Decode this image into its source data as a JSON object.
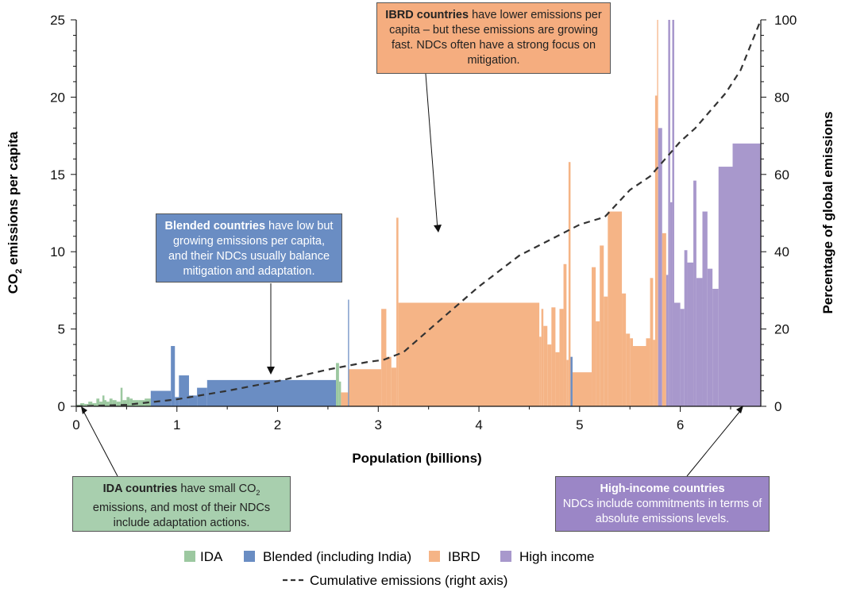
{
  "chart_data": {
    "type": "bar",
    "xlabel": "Population (billions)",
    "ylabel_main": "CO",
    "ylabel_sub": "2",
    "ylabel_rest": " emissions per capita",
    "y2label": "Percentage of global emissions",
    "xlim": [
      0,
      6.8
    ],
    "ylim": [
      0,
      25
    ],
    "y2lim": [
      0,
      100
    ],
    "xticks": [
      0,
      1,
      2,
      3,
      4,
      5,
      6
    ],
    "yticks": [
      0,
      5,
      10,
      15,
      20,
      25
    ],
    "y2ticks": [
      0,
      20,
      40,
      60,
      80,
      100
    ],
    "colors": {
      "IDA": "#9cc8a0",
      "Blended": "#6a8dc3",
      "IBRD": "#f5b486",
      "High income": "#a898cc",
      "line": "#333333"
    },
    "legend": {
      "ida": "IDA",
      "blended": "Blended (including India)",
      "ibrd": "IBRD",
      "high": "High income",
      "line": "Cumulative emissions (right axis)"
    },
    "bars": [
      {
        "g": "IDA",
        "x0": 0.0,
        "x1": 0.04,
        "y": 0.1
      },
      {
        "g": "IDA",
        "x0": 0.04,
        "x1": 0.08,
        "y": 0.2
      },
      {
        "g": "IDA",
        "x0": 0.08,
        "x1": 0.12,
        "y": 0.15
      },
      {
        "g": "IDA",
        "x0": 0.12,
        "x1": 0.16,
        "y": 0.3
      },
      {
        "g": "IDA",
        "x0": 0.16,
        "x1": 0.2,
        "y": 0.2
      },
      {
        "g": "IDA",
        "x0": 0.2,
        "x1": 0.23,
        "y": 0.5
      },
      {
        "g": "IDA",
        "x0": 0.23,
        "x1": 0.26,
        "y": 0.3
      },
      {
        "g": "IDA",
        "x0": 0.26,
        "x1": 0.28,
        "y": 0.7
      },
      {
        "g": "IDA",
        "x0": 0.28,
        "x1": 0.3,
        "y": 0.4
      },
      {
        "g": "IDA",
        "x0": 0.3,
        "x1": 0.33,
        "y": 0.3
      },
      {
        "g": "IDA",
        "x0": 0.33,
        "x1": 0.36,
        "y": 0.5
      },
      {
        "g": "IDA",
        "x0": 0.36,
        "x1": 0.4,
        "y": 0.4
      },
      {
        "g": "IDA",
        "x0": 0.4,
        "x1": 0.44,
        "y": 0.3
      },
      {
        "g": "IDA",
        "x0": 0.44,
        "x1": 0.46,
        "y": 1.2
      },
      {
        "g": "IDA",
        "x0": 0.46,
        "x1": 0.5,
        "y": 0.4
      },
      {
        "g": "IDA",
        "x0": 0.5,
        "x1": 0.53,
        "y": 0.6
      },
      {
        "g": "IDA",
        "x0": 0.53,
        "x1": 0.56,
        "y": 0.5
      },
      {
        "g": "IDA",
        "x0": 0.56,
        "x1": 0.62,
        "y": 0.4
      },
      {
        "g": "IDA",
        "x0": 0.62,
        "x1": 0.68,
        "y": 0.4
      },
      {
        "g": "IDA",
        "x0": 0.68,
        "x1": 0.74,
        "y": 0.5
      },
      {
        "g": "Blended",
        "x0": 0.74,
        "x1": 0.94,
        "y": 1.0
      },
      {
        "g": "Blended",
        "x0": 0.94,
        "x1": 0.98,
        "y": 3.9
      },
      {
        "g": "Blended",
        "x0": 0.98,
        "x1": 1.02,
        "y": 0.6
      },
      {
        "g": "Blended",
        "x0": 1.02,
        "x1": 1.12,
        "y": 2.0
      },
      {
        "g": "Blended",
        "x0": 1.12,
        "x1": 1.2,
        "y": 0.7
      },
      {
        "g": "Blended",
        "x0": 1.2,
        "x1": 1.3,
        "y": 1.2
      },
      {
        "g": "Blended",
        "x0": 1.3,
        "x1": 2.58,
        "y": 1.7
      },
      {
        "g": "IDA",
        "x0": 2.58,
        "x1": 2.61,
        "y": 2.8
      },
      {
        "g": "IDA",
        "x0": 2.61,
        "x1": 2.63,
        "y": 1.6
      },
      {
        "g": "IBRD",
        "x0": 2.63,
        "x1": 2.7,
        "y": 0.9
      },
      {
        "g": "Blended",
        "x0": 2.7,
        "x1": 2.71,
        "y": 6.9
      },
      {
        "g": "IBRD",
        "x0": 2.71,
        "x1": 3.03,
        "y": 2.4
      },
      {
        "g": "IBRD",
        "x0": 3.03,
        "x1": 3.08,
        "y": 6.3
      },
      {
        "g": "IBRD",
        "x0": 3.08,
        "x1": 3.13,
        "y": 3.2
      },
      {
        "g": "IBRD",
        "x0": 3.13,
        "x1": 3.18,
        "y": 2.5
      },
      {
        "g": "IBRD",
        "x0": 3.18,
        "x1": 3.2,
        "y": 12.2
      },
      {
        "g": "IBRD",
        "x0": 3.2,
        "x1": 4.6,
        "y": 6.7
      },
      {
        "g": "IBRD",
        "x0": 4.6,
        "x1": 4.62,
        "y": 4.5
      },
      {
        "g": "IBRD",
        "x0": 4.62,
        "x1": 4.64,
        "y": 6.3
      },
      {
        "g": "IBRD",
        "x0": 4.64,
        "x1": 4.68,
        "y": 5.2
      },
      {
        "g": "IBRD",
        "x0": 4.68,
        "x1": 4.72,
        "y": 4.0
      },
      {
        "g": "IBRD",
        "x0": 4.72,
        "x1": 4.76,
        "y": 6.4
      },
      {
        "g": "IBRD",
        "x0": 4.76,
        "x1": 4.8,
        "y": 3.5
      },
      {
        "g": "IBRD",
        "x0": 4.8,
        "x1": 4.84,
        "y": 6.3
      },
      {
        "g": "IBRD",
        "x0": 4.84,
        "x1": 4.87,
        "y": 9.2
      },
      {
        "g": "IBRD",
        "x0": 4.87,
        "x1": 4.89,
        "y": 3.0
      },
      {
        "g": "IBRD",
        "x0": 4.89,
        "x1": 4.91,
        "y": 15.8
      },
      {
        "g": "Blended",
        "x0": 4.91,
        "x1": 4.93,
        "y": 3.2
      },
      {
        "g": "IBRD",
        "x0": 4.93,
        "x1": 5.12,
        "y": 2.2
      },
      {
        "g": "IBRD",
        "x0": 5.12,
        "x1": 5.16,
        "y": 9.0
      },
      {
        "g": "IBRD",
        "x0": 5.16,
        "x1": 5.2,
        "y": 5.5
      },
      {
        "g": "IBRD",
        "x0": 5.2,
        "x1": 5.24,
        "y": 10.4
      },
      {
        "g": "IBRD",
        "x0": 5.24,
        "x1": 5.28,
        "y": 7.1
      },
      {
        "g": "IBRD",
        "x0": 5.28,
        "x1": 5.42,
        "y": 12.6
      },
      {
        "g": "IBRD",
        "x0": 5.42,
        "x1": 5.46,
        "y": 7.3
      },
      {
        "g": "IBRD",
        "x0": 5.46,
        "x1": 5.5,
        "y": 4.7
      },
      {
        "g": "IBRD",
        "x0": 5.5,
        "x1": 5.53,
        "y": 4.4
      },
      {
        "g": "IBRD",
        "x0": 5.53,
        "x1": 5.66,
        "y": 3.9
      },
      {
        "g": "IBRD",
        "x0": 5.66,
        "x1": 5.7,
        "y": 4.4
      },
      {
        "g": "IBRD",
        "x0": 5.7,
        "x1": 5.73,
        "y": 8.3
      },
      {
        "g": "IBRD",
        "x0": 5.73,
        "x1": 5.75,
        "y": 4.3
      },
      {
        "g": "IBRD",
        "x0": 5.75,
        "x1": 5.77,
        "y": 20.1
      },
      {
        "g": "IBRD",
        "x0": 5.77,
        "x1": 5.78,
        "y": 25.0
      },
      {
        "g": "High income",
        "x0": 5.78,
        "x1": 5.82,
        "y": 18.0
      },
      {
        "g": "IBRD",
        "x0": 5.82,
        "x1": 5.86,
        "y": 11.2
      },
      {
        "g": "High income",
        "x0": 5.86,
        "x1": 5.88,
        "y": 8.5
      },
      {
        "g": "High income",
        "x0": 5.88,
        "x1": 5.9,
        "y": 25.0
      },
      {
        "g": "High income",
        "x0": 5.9,
        "x1": 5.92,
        "y": 13.2
      },
      {
        "g": "High income",
        "x0": 5.92,
        "x1": 5.94,
        "y": 25.0
      },
      {
        "g": "High income",
        "x0": 5.94,
        "x1": 6.0,
        "y": 6.7
      },
      {
        "g": "High income",
        "x0": 6.0,
        "x1": 6.04,
        "y": 6.3
      },
      {
        "g": "High income",
        "x0": 6.04,
        "x1": 6.07,
        "y": 10.1
      },
      {
        "g": "High income",
        "x0": 6.07,
        "x1": 6.13,
        "y": 9.3
      },
      {
        "g": "High income",
        "x0": 6.13,
        "x1": 6.16,
        "y": 14.6
      },
      {
        "g": "High income",
        "x0": 6.16,
        "x1": 6.22,
        "y": 8.3
      },
      {
        "g": "High income",
        "x0": 6.22,
        "x1": 6.27,
        "y": 12.6
      },
      {
        "g": "High income",
        "x0": 6.27,
        "x1": 6.32,
        "y": 8.9
      },
      {
        "g": "High income",
        "x0": 6.32,
        "x1": 6.38,
        "y": 7.6
      },
      {
        "g": "High income",
        "x0": 6.38,
        "x1": 6.52,
        "y": 15.5
      },
      {
        "g": "High income",
        "x0": 6.52,
        "x1": 6.8,
        "y": 17.0
      }
    ],
    "cumulative": [
      [
        0,
        0
      ],
      [
        0.5,
        0.4
      ],
      [
        1.0,
        1.8
      ],
      [
        1.5,
        4.0
      ],
      [
        2.0,
        6.5
      ],
      [
        2.5,
        9.5
      ],
      [
        2.9,
        11.5
      ],
      [
        3.05,
        12.0
      ],
      [
        3.25,
        14.0
      ],
      [
        3.6,
        22.0
      ],
      [
        4.0,
        31.0
      ],
      [
        4.4,
        39.0
      ],
      [
        4.7,
        43.0
      ],
      [
        5.0,
        47.0
      ],
      [
        5.25,
        49.0
      ],
      [
        5.5,
        56.0
      ],
      [
        5.7,
        59.5
      ],
      [
        5.85,
        64.0
      ],
      [
        6.0,
        68.5
      ],
      [
        6.15,
        72.0
      ],
      [
        6.3,
        76.5
      ],
      [
        6.45,
        81.0
      ],
      [
        6.6,
        87.0
      ],
      [
        6.8,
        100.0
      ]
    ],
    "annotations": {
      "blended_bold": "Blended countries",
      "blended_text": " have low but growing emissions per capita, and their NDCs usually balance mitigation and adaptation.",
      "ibrd_bold": "IBRD countries",
      "ibrd_text": " have lower emissions per capita – but these emissions are growing fast. NDCs often have a strong focus on mitigation.",
      "ida_bold": "IDA countries",
      "ida_text1": " have small CO",
      "ida_sub": "2",
      "ida_text2": " emissions, and most of their NDCs include adaptation actions.",
      "high_bold": "High-income countries",
      "high_text": "NDCs include commitments in terms of absolute emissions levels."
    }
  }
}
